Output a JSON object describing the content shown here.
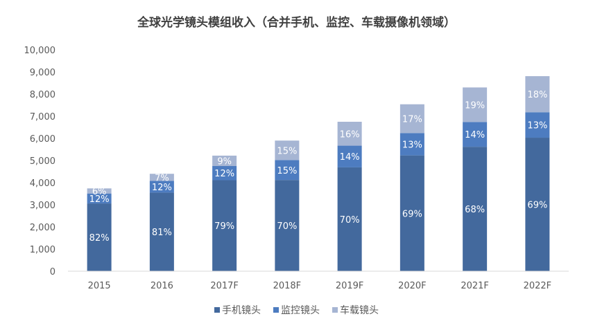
{
  "chart_data": {
    "type": "bar",
    "stacked": true,
    "title": "全球光学镜头模组收入（合并手机、监控、车载摄像机领域）",
    "categories": [
      "2015",
      "2016",
      "2017F",
      "2018F",
      "2019F",
      "2020F",
      "2021F",
      "2022F"
    ],
    "series": [
      {
        "name": "手机镜头",
        "color": "#43699d",
        "values": [
          3060,
          3550,
          4110,
          4120,
          4690,
          5230,
          5620,
          6030
        ],
        "labels": [
          "82%",
          "81%",
          "79%",
          "70%",
          "70%",
          "69%",
          "68%",
          "69%"
        ]
      },
      {
        "name": "监控镜头",
        "color": "#4d7cc0",
        "values": [
          450,
          530,
          640,
          900,
          980,
          1010,
          1120,
          1150
        ],
        "labels": [
          "12%",
          "12%",
          "12%",
          "15%",
          "14%",
          "13%",
          "14%",
          "13%"
        ]
      },
      {
        "name": "车载镜头",
        "color": "#a6b5d3",
        "values": [
          230,
          320,
          470,
          880,
          1080,
          1300,
          1560,
          1630
        ],
        "labels": [
          "6%",
          "7%",
          "9%",
          "15%",
          "16%",
          "17%",
          "19%",
          "18%"
        ]
      }
    ],
    "ylim": [
      0,
      10000
    ],
    "yticks": [
      "0",
      "1,000",
      "2,000",
      "3,000",
      "4,000",
      "5,000",
      "6,000",
      "7,000",
      "8,000",
      "9,000",
      "10,000"
    ],
    "legend_position": "bottom",
    "grid": false
  }
}
